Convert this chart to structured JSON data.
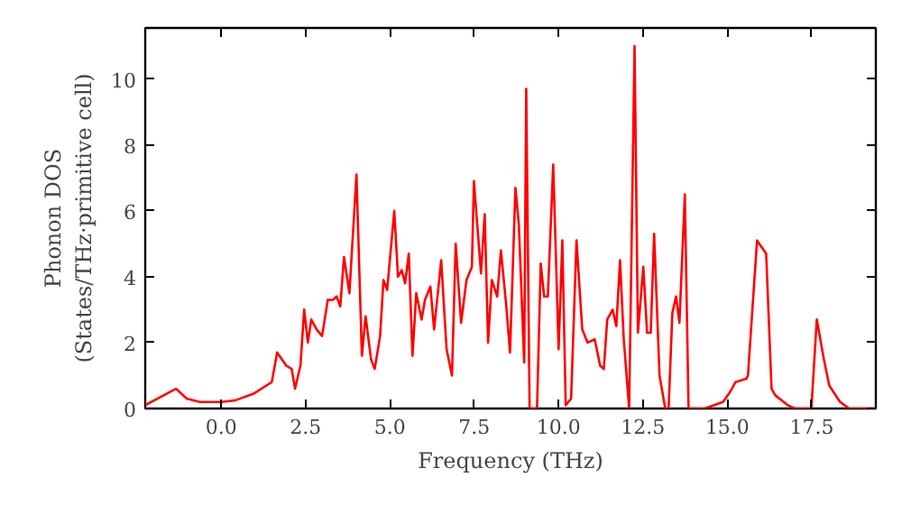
{
  "chart_data": {
    "type": "line",
    "xlabel": "Frequency (THz)",
    "ylabel": "Phonon DOS\n(States/THz·primitive cell)",
    "xlim": [
      -2.25,
      19.4
    ],
    "ylim": [
      0,
      11.55
    ],
    "xticks": [
      {
        "value": 0,
        "label": "0.0"
      },
      {
        "value": 2.5,
        "label": "2.5"
      },
      {
        "value": 5,
        "label": "5.0"
      },
      {
        "value": 7.5,
        "label": "7.5"
      },
      {
        "value": 10,
        "label": "10.0"
      },
      {
        "value": 12.5,
        "label": "12.5"
      },
      {
        "value": 15,
        "label": "15.0"
      },
      {
        "value": 17.5,
        "label": "17.5"
      }
    ],
    "yticks": [
      0,
      2,
      4,
      6,
      8,
      10
    ],
    "grid": false,
    "line_style": "solid",
    "series": [
      {
        "color": "#ff0000",
        "x": [
          -2.25,
          -1.34,
          -1.02,
          -0.64,
          0,
          0.43,
          0.96,
          1.5,
          1.66,
          1.93,
          2.09,
          2.19,
          2.35,
          2.46,
          2.57,
          2.67,
          2.83,
          2.99,
          3.16,
          3.32,
          3.42,
          3.53,
          3.64,
          3.8,
          4.01,
          4.17,
          4.28,
          4.44,
          4.55,
          4.71,
          4.81,
          4.92,
          5.13,
          5.24,
          5.35,
          5.45,
          5.56,
          5.67,
          5.78,
          5.94,
          6.04,
          6.2,
          6.31,
          6.52,
          6.68,
          6.84,
          6.95,
          7.11,
          7.27,
          7.43,
          7.49,
          7.7,
          7.81,
          7.91,
          8.02,
          8.18,
          8.29,
          8.45,
          8.56,
          8.72,
          8.82,
          8.98,
          9.04,
          9.14,
          9.36,
          9.47,
          9.57,
          9.68,
          9.84,
          10.0,
          10.11,
          10.21,
          10.37,
          10.53,
          10.7,
          10.86,
          11.07,
          11.23,
          11.34,
          11.44,
          11.6,
          11.71,
          11.82,
          11.93,
          12.09,
          12.25,
          12.35,
          12.51,
          12.62,
          12.73,
          12.83,
          12.99,
          13.16,
          13.26,
          13.37,
          13.48,
          13.58,
          13.74,
          13.85,
          14.33,
          14.87,
          15.08,
          15.24,
          15.56,
          15.61,
          15.88,
          16.15,
          16.31,
          16.42,
          16.79,
          17.0,
          17.49,
          17.65,
          17.86,
          18.02,
          18.34,
          18.61,
          19.4
        ],
        "values": [
          0.1,
          0.6,
          0.3,
          0.2,
          0.2,
          0.25,
          0.45,
          0.8,
          1.7,
          1.3,
          1.2,
          0.6,
          1.3,
          3.0,
          2.0,
          2.7,
          2.4,
          2.2,
          3.3,
          3.3,
          3.4,
          3.1,
          4.6,
          3.5,
          7.1,
          1.6,
          2.8,
          1.5,
          1.2,
          2.2,
          3.9,
          3.6,
          6.0,
          4.0,
          4.2,
          3.8,
          4.7,
          1.6,
          3.5,
          2.7,
          3.3,
          3.7,
          2.4,
          4.5,
          1.8,
          1.0,
          5.0,
          2.6,
          3.9,
          4.3,
          6.9,
          4.1,
          5.9,
          2.0,
          3.9,
          3.4,
          4.8,
          3.1,
          1.7,
          6.7,
          5.6,
          1.4,
          9.7,
          0,
          0,
          4.4,
          3.4,
          3.4,
          7.4,
          1.8,
          5.1,
          0.1,
          0.3,
          5.1,
          2.4,
          2.0,
          2.1,
          1.3,
          1.2,
          2.7,
          3.0,
          2.5,
          4.5,
          2.1,
          0,
          11.0,
          2.3,
          4.3,
          2.3,
          2.3,
          5.3,
          1.0,
          0,
          0,
          2.9,
          3.4,
          2.6,
          6.5,
          0,
          0,
          0.2,
          0.5,
          0.8,
          0.9,
          1.0,
          5.1,
          4.7,
          0.6,
          0.4,
          0.1,
          0,
          0,
          2.7,
          1.5,
          0.7,
          0.2,
          0,
          0
        ]
      }
    ]
  }
}
